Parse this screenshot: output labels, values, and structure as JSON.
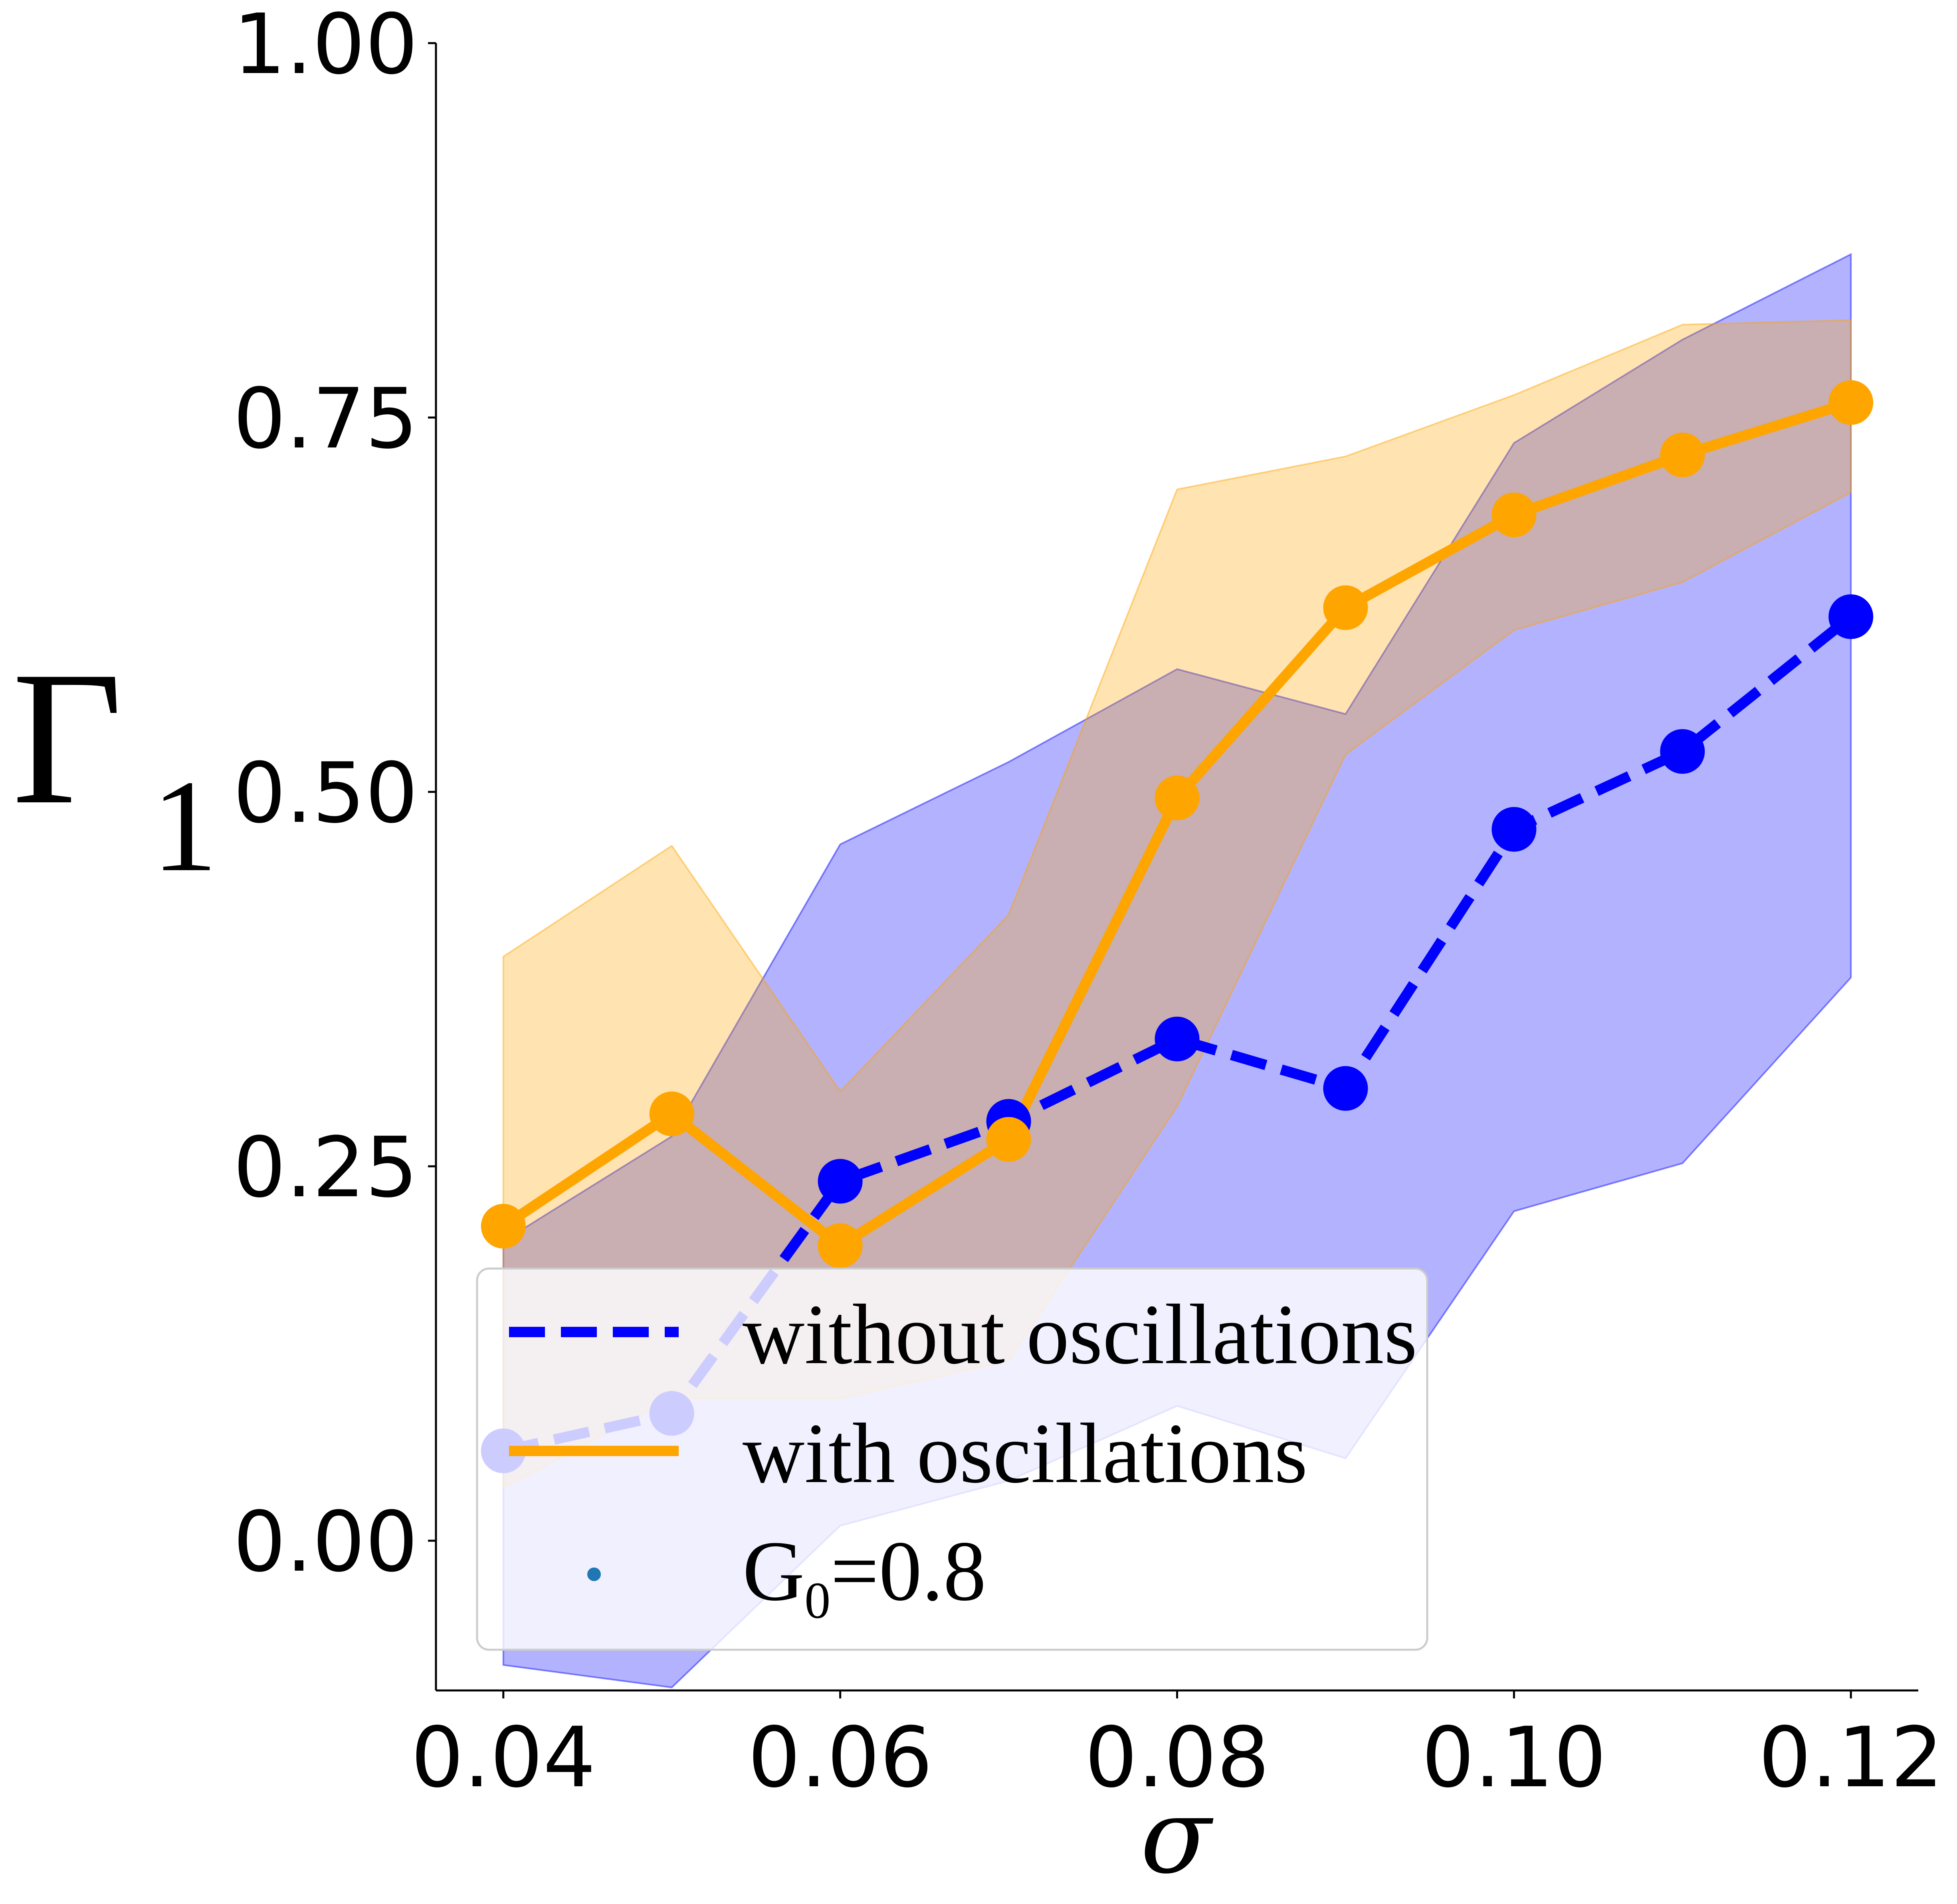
{
  "chart_data": {
    "type": "line",
    "xlabel": "σ",
    "ylabel": "Γ",
    "ylabel_subscript": "1",
    "xlim": [
      0.036,
      0.124
    ],
    "ylim": [
      -0.1,
      1.0
    ],
    "x_ticks": [
      "0.04",
      "0.06",
      "0.08",
      "0.10",
      "0.12"
    ],
    "x_tick_values": [
      0.04,
      0.06,
      0.08,
      0.1,
      0.12
    ],
    "y_ticks": [
      "0.00",
      "0.25",
      "0.50",
      "0.75",
      "1.00"
    ],
    "y_tick_values": [
      0.0,
      0.25,
      0.5,
      0.75,
      1.0
    ],
    "x": [
      0.04,
      0.05,
      0.06,
      0.07,
      0.08,
      0.09,
      0.1,
      0.11,
      0.12
    ],
    "series": [
      {
        "name": "without oscillations",
        "legend_label": "without oscillations",
        "color": "#0000ff",
        "linestyle": "dashed",
        "values": [
          0.06,
          0.085,
          0.24,
          0.28,
          0.335,
          0.302,
          0.475,
          0.527,
          0.617
        ],
        "band_lower": [
          -0.083,
          -0.098,
          0.01,
          0.04,
          0.09,
          0.055,
          0.22,
          0.252,
          0.376
        ],
        "band_upper": [
          0.2,
          0.27,
          0.465,
          0.52,
          0.582,
          0.552,
          0.733,
          0.802,
          0.859
        ]
      },
      {
        "name": "with oscillations",
        "legend_label": "with oscillations",
        "color": "#ffa500",
        "linestyle": "solid",
        "values": [
          0.21,
          0.285,
          0.197,
          0.268,
          0.496,
          0.623,
          0.685,
          0.725,
          0.76
        ],
        "band_lower": [
          0.035,
          0.095,
          0.095,
          0.12,
          0.29,
          0.525,
          0.608,
          0.64,
          0.7
        ],
        "band_upper": [
          0.39,
          0.464,
          0.3,
          0.418,
          0.702,
          0.724,
          0.765,
          0.812,
          0.815
        ]
      }
    ],
    "extra_legend_entry": {
      "label_main": "G",
      "label_sub": "0",
      "label_rest": "=0.8",
      "color": "#1f77b4"
    },
    "legend_position": "lower-center",
    "grid": false
  }
}
